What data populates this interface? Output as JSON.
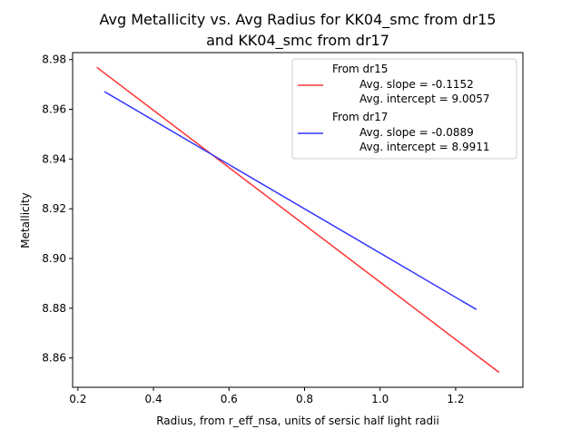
{
  "chart_data": {
    "type": "line",
    "title_lines": [
      "Avg Metallicity vs. Avg Radius for KK04_smc from dr15",
      "and KK04_smc from dr17"
    ],
    "xlabel": "Radius, from r_eff_nsa, units of sersic half light radii",
    "ylabel": "Metallicity",
    "xlim": [
      0.186,
      1.378
    ],
    "ylim": [
      8.8482,
      8.9828
    ],
    "x_ticks": [
      0.2,
      0.4,
      0.6,
      0.8,
      1.0,
      1.2
    ],
    "x_tick_labels": [
      "0.2",
      "0.4",
      "0.6",
      "0.8",
      "1.0",
      "1.2"
    ],
    "y_ticks": [
      8.86,
      8.88,
      8.9,
      8.92,
      8.94,
      8.96,
      8.98
    ],
    "y_tick_labels": [
      "8.86",
      "8.88",
      "8.90",
      "8.92",
      "8.94",
      "8.96",
      "8.98"
    ],
    "grid": false,
    "legend_position": "top-right",
    "series": [
      {
        "name": "From dr15",
        "slope_label": "Avg. slope = -0.1152",
        "intercept_label": "Avg. intercept = 9.0057",
        "color": "#ff3333",
        "x": [
          0.25,
          1.315
        ],
        "y": [
          8.9769,
          8.8542
        ]
      },
      {
        "name": "From dr17",
        "slope_label": "Avg. slope = -0.0889",
        "intercept_label": "Avg. intercept = 8.9911",
        "color": "#3333ff",
        "x": [
          0.27,
          1.255
        ],
        "y": [
          8.9671,
          8.8795
        ]
      }
    ]
  }
}
